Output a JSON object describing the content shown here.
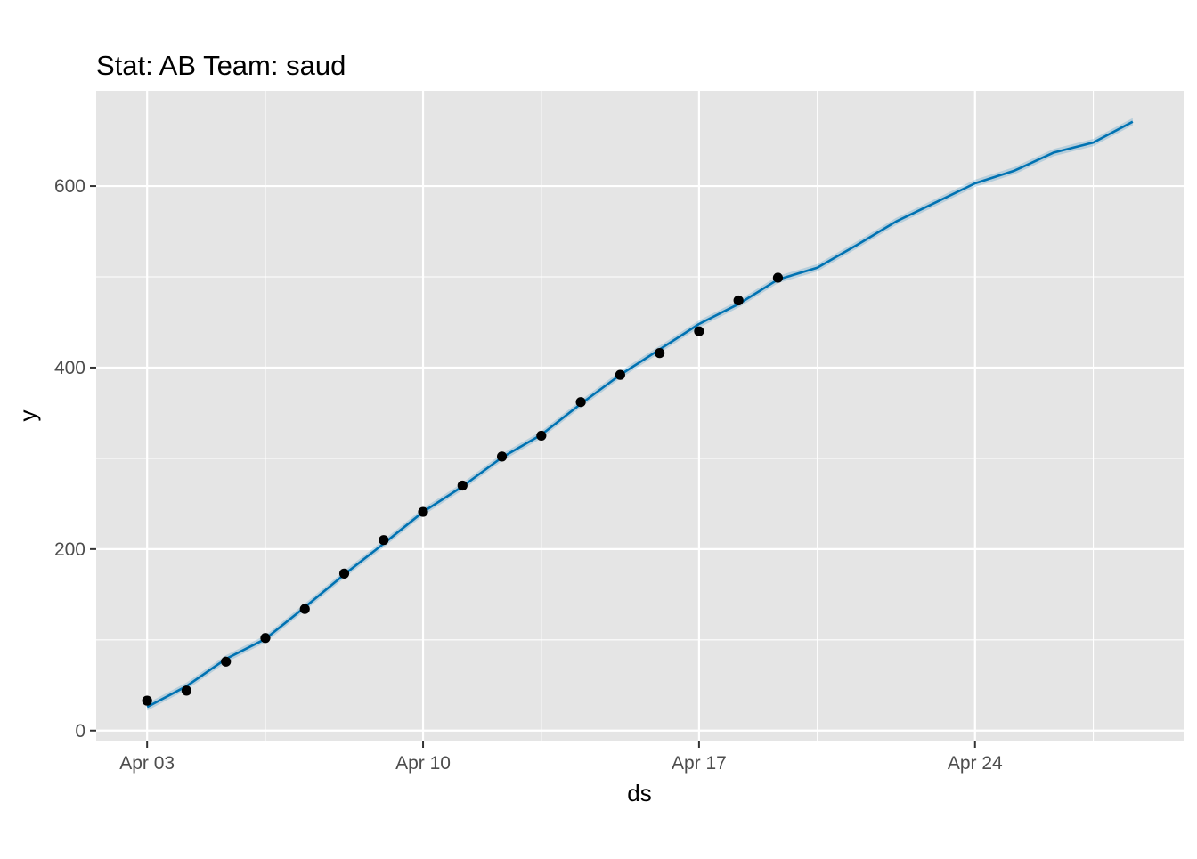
{
  "chart_data": {
    "type": "line",
    "title": "Stat: AB Team: saud",
    "xlabel": "ds",
    "ylabel": "y",
    "x_tick_labels": [
      "Apr 03",
      "Apr 10",
      "Apr 17",
      "Apr 24"
    ],
    "x_tick_dates": [
      "2021-04-03",
      "2021-04-10",
      "2021-04-17",
      "2021-04-24"
    ],
    "xlim": [
      "2021-04-01T17:00",
      "2021-04-29T07:00"
    ],
    "y_ticks": [
      0,
      200,
      400,
      600
    ],
    "ylim": [
      -12,
      705
    ],
    "grid": true,
    "colors": {
      "panel_background": "#e5e5e5",
      "grid_line": "#ffffff",
      "forecast_line": "#0072b2",
      "uncertainty_band": "#0072b2",
      "points": "#000000"
    },
    "series": [
      {
        "kind": "points",
        "x": [
          "2021-04-03",
          "2021-04-04",
          "2021-04-05",
          "2021-04-06",
          "2021-04-07",
          "2021-04-08",
          "2021-04-09",
          "2021-04-10",
          "2021-04-11",
          "2021-04-12",
          "2021-04-13",
          "2021-04-14",
          "2021-04-15",
          "2021-04-16",
          "2021-04-17",
          "2021-04-18",
          "2021-04-19"
        ],
        "y": [
          33,
          44,
          76,
          102,
          134,
          173,
          210,
          241,
          270,
          302,
          325,
          362,
          392,
          416,
          440,
          474,
          499
        ]
      },
      {
        "kind": "line",
        "x": [
          "2021-04-03",
          "2021-04-04",
          "2021-04-05",
          "2021-04-06",
          "2021-04-07",
          "2021-04-08",
          "2021-04-09",
          "2021-04-10",
          "2021-04-11",
          "2021-04-12",
          "2021-04-13",
          "2021-04-14",
          "2021-04-15",
          "2021-04-16",
          "2021-04-17",
          "2021-04-18",
          "2021-04-19",
          "2021-04-20",
          "2021-04-21",
          "2021-04-22",
          "2021-04-23",
          "2021-04-24",
          "2021-04-25",
          "2021-04-26",
          "2021-04-27",
          "2021-04-28"
        ],
        "y": [
          26,
          49,
          79,
          101,
          136,
          172,
          206,
          241,
          269,
          301,
          326,
          360,
          392,
          420,
          448,
          470,
          497,
          510,
          535,
          561,
          582,
          603,
          617,
          637,
          648,
          671
        ],
        "band": 4
      }
    ]
  }
}
